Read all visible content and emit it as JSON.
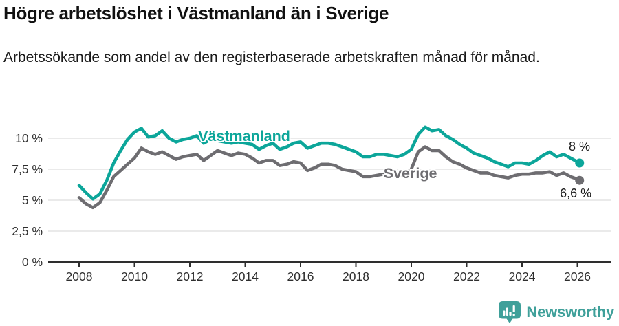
{
  "header": {
    "title": "Högre arbetslöshet i Västmanland än i Sverige",
    "subtitle": "Arbetssökande som andel av den registerbaserade arbetskraften månad för månad."
  },
  "footer": {
    "brand": "Newsworthy",
    "logo_icon": "bar-chart-speech-bubble-icon",
    "brand_color": "#3fa09a"
  },
  "colors": {
    "vastmanland_line": "#0ca69a",
    "sverige_line": "#6e6d71",
    "grid_line": "#e4e4e4",
    "axis_line": "#2e2e2e",
    "tick_text": "#2e2e2e",
    "annotation_text": "#1a1a1a"
  },
  "chart_data": {
    "type": "line",
    "unit": "%",
    "grid": "horizontal",
    "legend_position": "inline-labels",
    "x_axis": {
      "tick_labels": [
        "2008",
        "2010",
        "2012",
        "2014",
        "2016",
        "2018",
        "2020",
        "2022",
        "2024",
        "2026"
      ],
      "tick_values": [
        2008,
        2010,
        2012,
        2014,
        2016,
        2018,
        2020,
        2022,
        2024,
        2026
      ]
    },
    "y_axis": {
      "tick_labels": [
        "0 %",
        "2,5 %",
        "5 %",
        "7,5 %",
        "10 %"
      ],
      "tick_values": [
        0,
        2.5,
        5,
        7.5,
        10
      ],
      "range": [
        0,
        12.2
      ]
    },
    "x_range": [
      2008,
      2026.4
    ],
    "x": [
      2008,
      2008.25,
      2008.5,
      2008.75,
      2009,
      2009.25,
      2009.5,
      2009.75,
      2010,
      2010.25,
      2010.5,
      2010.75,
      2011,
      2011.25,
      2011.5,
      2011.75,
      2012,
      2012.25,
      2012.5,
      2012.75,
      2013,
      2013.25,
      2013.5,
      2013.75,
      2014,
      2014.25,
      2014.5,
      2014.75,
      2015,
      2015.25,
      2015.5,
      2015.75,
      2016,
      2016.25,
      2016.5,
      2016.75,
      2017,
      2017.25,
      2017.5,
      2017.75,
      2018,
      2018.25,
      2018.5,
      2018.75,
      2019,
      2019.25,
      2019.5,
      2019.75,
      2020,
      2020.25,
      2020.5,
      2020.75,
      2021,
      2021.25,
      2021.5,
      2021.75,
      2022,
      2022.25,
      2022.5,
      2022.75,
      2023,
      2023.25,
      2023.5,
      2023.75,
      2024,
      2024.25,
      2024.5,
      2024.75,
      2025,
      2025.25,
      2025.5,
      2025.75,
      2026,
      2026.08
    ],
    "series": [
      {
        "name": "Västmanland",
        "color": "#0ca69a",
        "label": {
          "text": "Västmanland",
          "x": 2012.3,
          "y": 9.78
        },
        "end_label": {
          "text": "8 %",
          "x": 2025.69,
          "y": 9.0
        },
        "end_value": "8 %",
        "values": [
          6.2,
          5.6,
          5.1,
          5.5,
          6.6,
          8.0,
          9.0,
          9.9,
          10.5,
          10.8,
          10.1,
          10.2,
          10.6,
          10.0,
          9.7,
          9.9,
          10.0,
          10.2,
          9.6,
          9.9,
          9.8,
          9.7,
          9.6,
          9.7,
          9.6,
          9.5,
          9.1,
          9.4,
          9.6,
          9.1,
          9.3,
          9.6,
          9.7,
          9.2,
          9.4,
          9.6,
          9.6,
          9.5,
          9.3,
          9.1,
          8.9,
          8.5,
          8.5,
          8.7,
          8.7,
          8.6,
          8.5,
          8.7,
          9.1,
          10.3,
          10.9,
          10.6,
          10.7,
          10.2,
          9.9,
          9.5,
          9.2,
          8.8,
          8.6,
          8.4,
          8.1,
          7.9,
          7.7,
          8.0,
          8.0,
          7.9,
          8.2,
          8.6,
          8.9,
          8.5,
          8.7,
          8.4,
          8.1,
          8.0
        ]
      },
      {
        "name": "Sverige",
        "color": "#6e6d71",
        "label": {
          "text": "Sverige",
          "x": 2019.0,
          "y": 6.78
        },
        "end_label": {
          "text": "6,6 %",
          "x": 2025.37,
          "y": 5.22
        },
        "end_value": "6,6 %",
        "values": [
          5.2,
          4.7,
          4.4,
          4.8,
          5.8,
          6.9,
          7.4,
          7.9,
          8.4,
          9.2,
          8.9,
          8.7,
          8.9,
          8.6,
          8.3,
          8.5,
          8.6,
          8.7,
          8.2,
          8.6,
          9.0,
          8.8,
          8.6,
          8.8,
          8.7,
          8.4,
          8.0,
          8.2,
          8.2,
          7.8,
          7.9,
          8.1,
          8.0,
          7.4,
          7.6,
          7.9,
          7.9,
          7.8,
          7.5,
          7.4,
          7.3,
          6.9,
          6.9,
          7.0,
          7.1,
          7.1,
          7.0,
          7.1,
          7.5,
          8.9,
          9.3,
          9.0,
          9.0,
          8.5,
          8.1,
          7.9,
          7.6,
          7.4,
          7.2,
          7.2,
          7.0,
          6.9,
          6.8,
          7.0,
          7.1,
          7.1,
          7.2,
          7.2,
          7.3,
          7.0,
          7.2,
          6.9,
          6.7,
          6.6
        ]
      }
    ]
  }
}
